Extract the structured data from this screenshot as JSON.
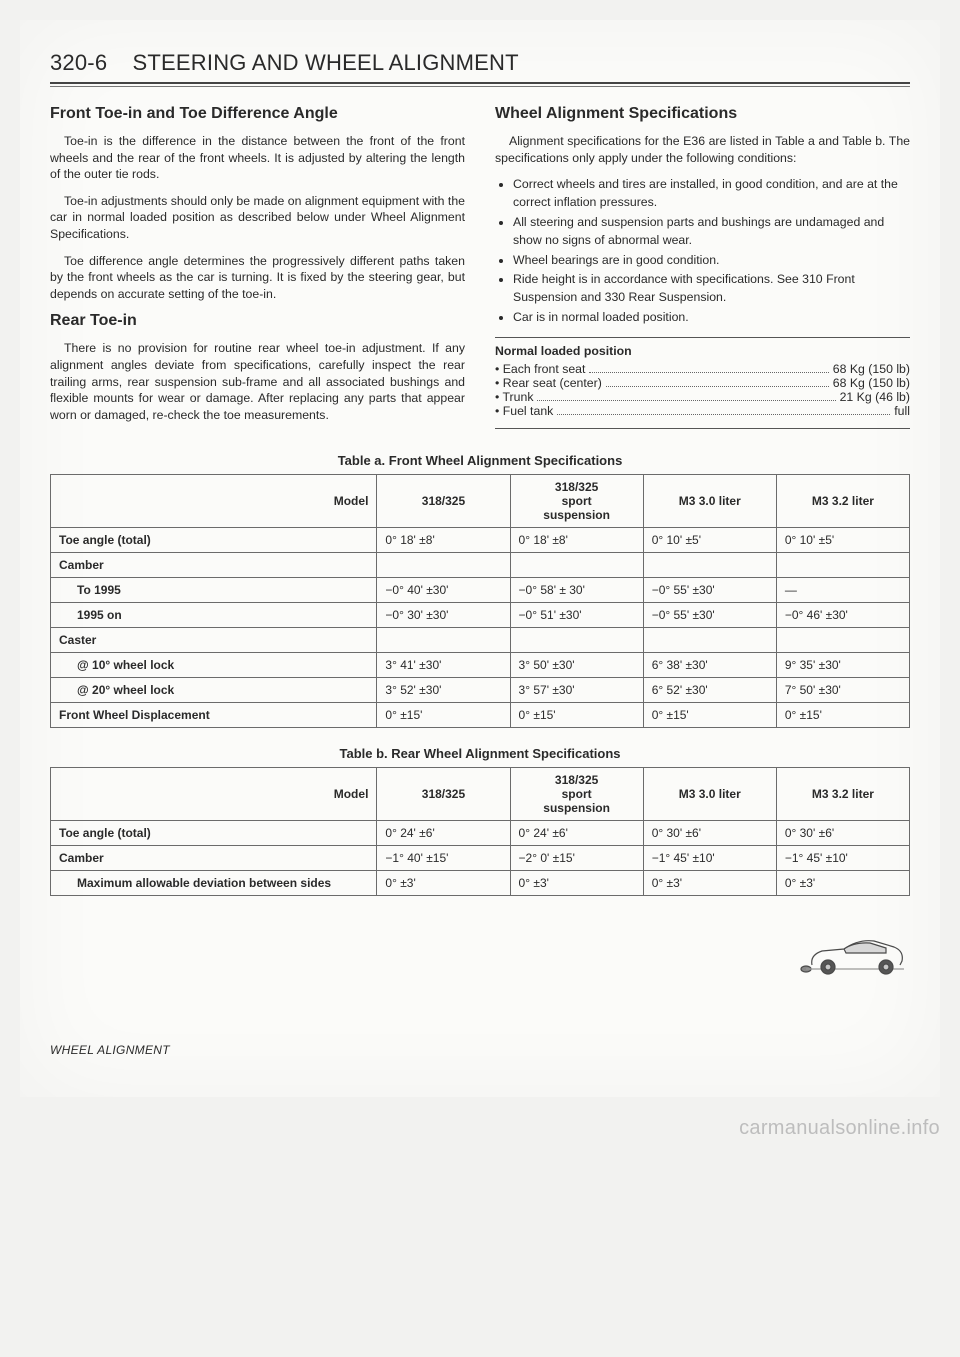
{
  "header": {
    "page_number": "320-6",
    "title_caps": "STEERING AND WHEEL ALIGNMENT"
  },
  "left": {
    "h1": "Front Toe-in and Toe Difference Angle",
    "p1": "Toe-in is the difference in the distance between the front of the front wheels and the rear of the front wheels. It is adjusted by altering the length of the outer tie rods.",
    "p2": "Toe-in adjustments should only be made on alignment equipment with the car in normal loaded position as described below under Wheel Alignment Specifications.",
    "p3": "Toe difference angle determines the progressively different paths taken by the front wheels as the car is turning. It is fixed by the steering gear, but depends on accurate setting of the toe-in.",
    "h2": "Rear Toe-in",
    "p4": "There is no provision for routine rear wheel toe-in adjustment. If any alignment angles deviate from specifications, carefully inspect the rear trailing arms, rear suspension sub-frame and all associated bushings and flexible mounts for wear or damage. After replacing any parts that appear worn or damaged, re-check the toe measurements."
  },
  "right": {
    "h1": "Wheel Alignment Specifications",
    "p1": "Alignment specifications for the E36 are listed in Table a and Table b. The specifications only apply under the following conditions:",
    "bullets": [
      "Correct wheels and tires are installed, in good condition, and are at the correct inflation pressures.",
      "All steering and suspension parts and bushings are undamaged and show no signs of abnormal wear.",
      "Wheel bearings are in good condition.",
      "Ride height is in accordance with specifications. See 310 Front Suspension and 330 Rear Suspension.",
      "Car is in normal loaded position."
    ],
    "load_title": "Normal loaded position",
    "loads": [
      {
        "label": "• Each front seat",
        "value": "68 Kg (150 lb)"
      },
      {
        "label": "• Rear seat (center)",
        "value": "68 Kg (150 lb)"
      },
      {
        "label": "• Trunk",
        "value": "21 Kg (46 lb)"
      },
      {
        "label": "• Fuel tank",
        "value": "full"
      }
    ]
  },
  "tableA": {
    "caption": "Table a. Front Wheel Alignment Specifications",
    "model_label": "Model",
    "cols": [
      "318/325",
      "318/325 sport suspension",
      "M3 3.0 liter",
      "M3 3.2 liter"
    ],
    "rows": [
      {
        "head": "Toe angle (total)",
        "cells": [
          "0° 18' ±8'",
          "0° 18' ±8'",
          "0° 10' ±5'",
          "0° 10' ±5'"
        ]
      },
      {
        "head": "Camber",
        "cells": [
          "",
          "",
          "",
          ""
        ]
      },
      {
        "sub": "To 1995",
        "cells": [
          "−0° 40' ±30'",
          "−0° 58' ± 30'",
          "−0° 55' ±30'",
          "—"
        ]
      },
      {
        "sub": "1995 on",
        "cells": [
          "−0° 30' ±30'",
          "−0° 51' ±30'",
          "−0° 55' ±30'",
          "−0° 46' ±30'"
        ]
      },
      {
        "head": "Caster",
        "cells": [
          "",
          "",
          "",
          ""
        ]
      },
      {
        "sub": "@ 10° wheel lock",
        "cells": [
          "3° 41' ±30'",
          "3° 50' ±30'",
          "6° 38' ±30'",
          "9° 35' ±30'"
        ]
      },
      {
        "sub": "@ 20° wheel lock",
        "cells": [
          "3° 52' ±30'",
          "3° 57' ±30'",
          "6° 52' ±30'",
          "7° 50' ±30'"
        ]
      },
      {
        "head": "Front Wheel Displacement",
        "cells": [
          "0° ±15'",
          "0° ±15'",
          "0° ±15'",
          "0° ±15'"
        ]
      }
    ]
  },
  "tableB": {
    "caption": "Table b. Rear Wheel Alignment Specifications",
    "model_label": "Model",
    "cols": [
      "318/325",
      "318/325 sport suspension",
      "M3 3.0 liter",
      "M3 3.2 liter"
    ],
    "rows": [
      {
        "head": "Toe angle (total)",
        "cells": [
          "0° 24' ±6'",
          "0° 24' ±6'",
          "0° 30' ±6'",
          "0° 30' ±6'"
        ]
      },
      {
        "head": "Camber",
        "cells": [
          "−1° 40' ±15'",
          "−2° 0' ±15'",
          "−1° 45' ±10'",
          "−1° 45' ±10'"
        ]
      },
      {
        "sub": "Maximum allowable deviation between sides",
        "cells": [
          "0° ±3'",
          "0° ±3'",
          "0° ±3'",
          "0° ±3'"
        ]
      }
    ]
  },
  "footer": "WHEEL ALIGNMENT",
  "watermark": "carmanualsonline.info",
  "style": {
    "page_bg": "#fbfbf9",
    "body_bg": "#f2f2f0",
    "text_color": "#2a2a2a",
    "rule_color": "#444444",
    "table_border": "#6b6b6b",
    "body_font_size": 12.3,
    "heading_font_size": 16,
    "pagehead_font_size": 22,
    "table_font_size": 12,
    "widths": {
      "col0": "38%",
      "colN": "15.5%"
    }
  }
}
